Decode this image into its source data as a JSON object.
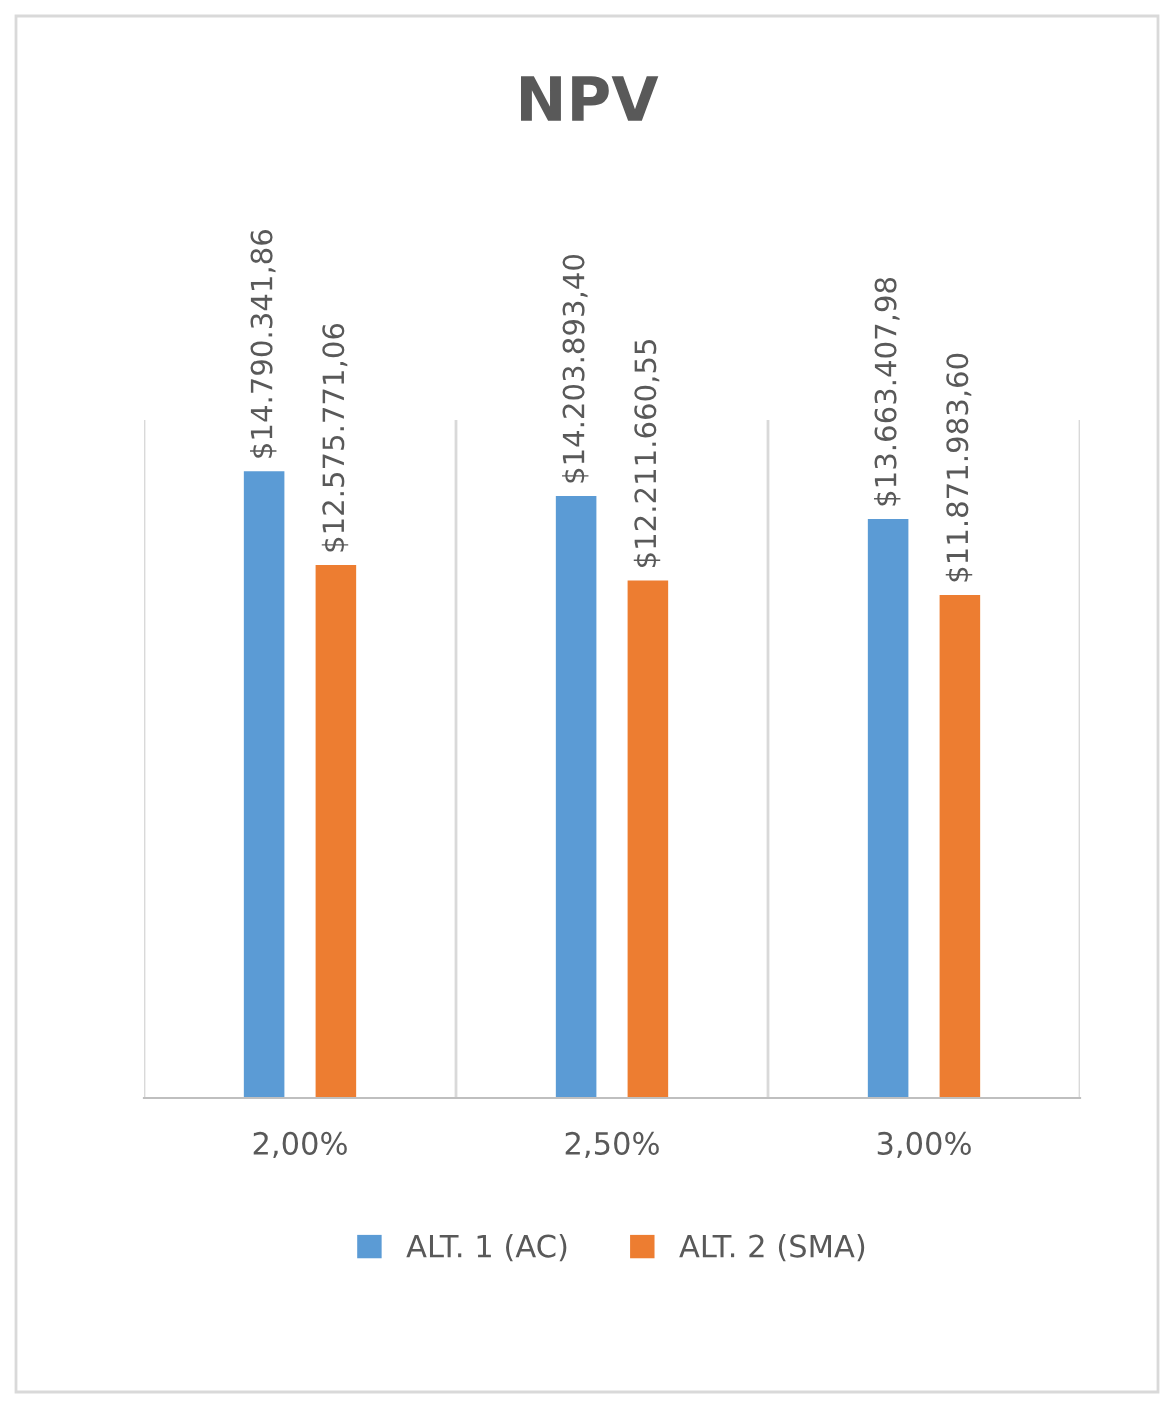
{
  "chart_data": {
    "type": "bar",
    "title": "NPV",
    "categories": [
      "2,00%",
      "2,50%",
      "3,00%"
    ],
    "series": [
      {
        "name": "ALT. 1 (AC)",
        "color": "#5b9bd5",
        "values": [
          14790341.86,
          14203893.4,
          13663407.98
        ],
        "value_labels": [
          "$14.790.341,86",
          "$14.203.893,40",
          "$13.663.407,98"
        ]
      },
      {
        "name": "ALT. 2 (SMA)",
        "color": "#ed7d31",
        "values": [
          12575771.06,
          12211660.55,
          11871983.6
        ],
        "value_labels": [
          "$12.575.771,06",
          "$12.211.660,55",
          "$11.871.983,60"
        ]
      }
    ],
    "ylim": [
      0,
      16000000
    ],
    "grid": "x",
    "legend": "bottom",
    "tick_labels": "x"
  }
}
